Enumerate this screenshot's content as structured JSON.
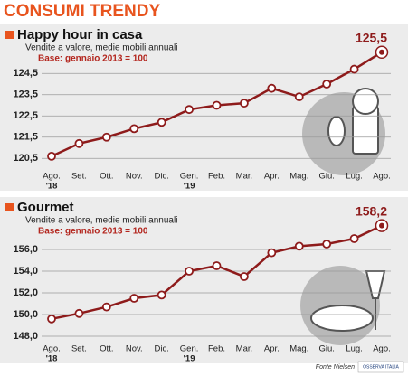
{
  "header": {
    "title": "CONSUMI TRENDY"
  },
  "chart_data": [
    {
      "type": "line",
      "title": "Happy hour in casa",
      "subtitle": "Vendite a valore, medie mobili annuali",
      "note": "Base: gennaio 2013 = 100",
      "categories": [
        "Ago.",
        "Set.",
        "Ott.",
        "Nov.",
        "Dic.",
        "Gen.",
        "Feb.",
        "Mar.",
        "Apr.",
        "Mag.",
        "Giu.",
        "Lug.",
        "Ago."
      ],
      "category_sublabels": [
        "'18",
        null,
        null,
        null,
        null,
        "'19",
        null,
        null,
        null,
        null,
        null,
        null,
        null
      ],
      "series": [
        {
          "name": "Happy hour in casa",
          "color": "#8e1b1b",
          "values": [
            120.6,
            121.2,
            121.5,
            121.9,
            122.2,
            122.8,
            123.0,
            123.1,
            123.8,
            123.4,
            124.0,
            124.7,
            125.5
          ],
          "value_labels": [
            null,
            null,
            null,
            null,
            null,
            null,
            null,
            null,
            null,
            null,
            null,
            null,
            "125,5"
          ]
        }
      ],
      "ylim": [
        120,
        126
      ],
      "yticks": [
        {
          "value": 120.5,
          "label": "120,5"
        },
        {
          "value": 121.5,
          "label": "121,5"
        },
        {
          "value": 122.5,
          "label": "122,5"
        },
        {
          "value": 123.5,
          "label": "123,5"
        },
        {
          "value": 124.5,
          "label": "124,5"
        }
      ],
      "grid": true
    },
    {
      "type": "line",
      "title": "Gourmet",
      "subtitle": "Vendite a valore, medie mobili annuali",
      "note": "Base: gennaio 2013 = 100",
      "categories": [
        "Ago.",
        "Set.",
        "Ott.",
        "Nov.",
        "Dic.",
        "Gen.",
        "Feb.",
        "Mar.",
        "Apr.",
        "Mag.",
        "Giu.",
        "Lug.",
        "Ago."
      ],
      "category_sublabels": [
        "'18",
        null,
        null,
        null,
        null,
        "'19",
        null,
        null,
        null,
        null,
        null,
        null,
        null
      ],
      "series": [
        {
          "name": "Gourmet",
          "color": "#8e1b1b",
          "values": [
            149.6,
            150.1,
            150.7,
            151.5,
            151.8,
            154.0,
            154.5,
            153.5,
            155.7,
            156.3,
            156.5,
            157.0,
            158.2
          ],
          "value_labels": [
            null,
            null,
            null,
            null,
            null,
            null,
            null,
            null,
            null,
            null,
            null,
            null,
            "158,2"
          ]
        }
      ],
      "ylim": [
        147.5,
        159
      ],
      "yticks": [
        {
          "value": 148,
          "label": "148,0"
        },
        {
          "value": 150,
          "label": "150,0"
        },
        {
          "value": 152,
          "label": "152,0"
        },
        {
          "value": 154,
          "label": "154,0"
        },
        {
          "value": 156,
          "label": "156,0"
        }
      ],
      "grid": true
    }
  ],
  "footer": {
    "source": "Fonte Nielsen",
    "logo": "OSSERVA ITALIA"
  }
}
